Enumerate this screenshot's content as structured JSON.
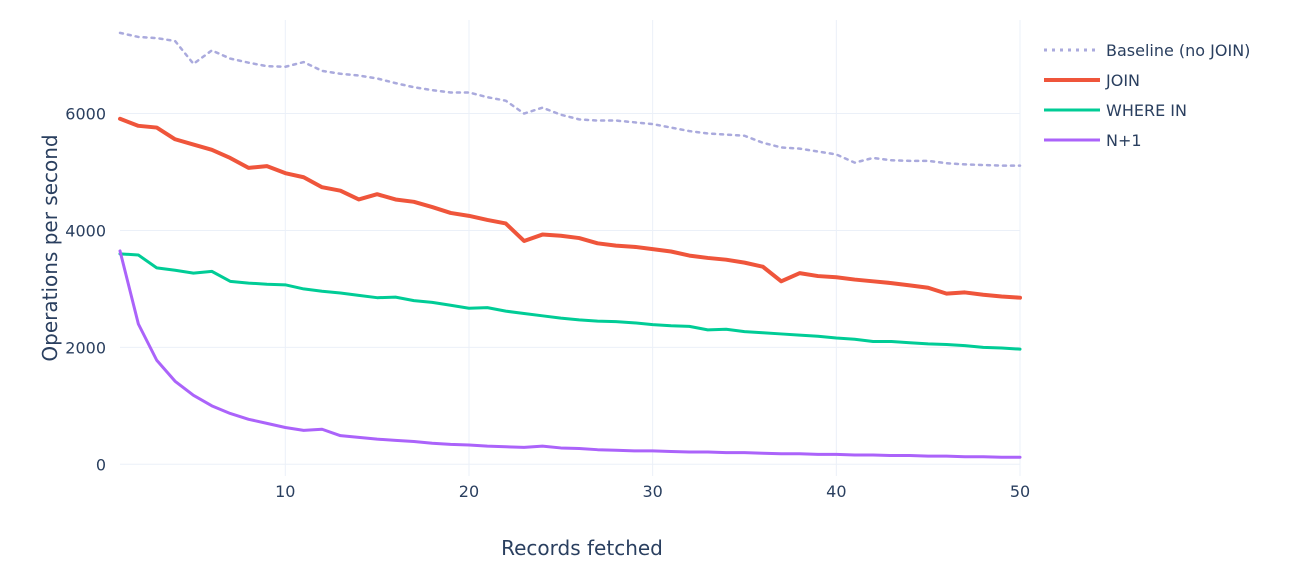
{
  "chart_data": {
    "type": "line",
    "title": "",
    "xlabel": "Records fetched",
    "ylabel": "Operations per second",
    "xlim": [
      1,
      50
    ],
    "ylim": [
      -200,
      7600
    ],
    "xticks": [
      10,
      20,
      30,
      40,
      50
    ],
    "yticks": [
      0,
      2000,
      4000,
      6000
    ],
    "grid": true,
    "legend_position": "top-right",
    "x": [
      1,
      2,
      3,
      4,
      5,
      6,
      7,
      8,
      9,
      10,
      11,
      12,
      13,
      14,
      15,
      16,
      17,
      18,
      19,
      20,
      21,
      22,
      23,
      24,
      25,
      26,
      27,
      28,
      29,
      30,
      31,
      32,
      33,
      34,
      35,
      36,
      37,
      38,
      39,
      40,
      41,
      42,
      43,
      44,
      45,
      46,
      47,
      48,
      49,
      50
    ],
    "series": [
      {
        "name": "Baseline (no JOIN)",
        "color": "#aaaadd",
        "dash": "dot",
        "values": [
          7380,
          7310,
          7290,
          7240,
          6850,
          7080,
          6940,
          6870,
          6810,
          6800,
          6880,
          6730,
          6680,
          6650,
          6600,
          6520,
          6450,
          6400,
          6360,
          6360,
          6280,
          6220,
          6000,
          6100,
          5980,
          5900,
          5880,
          5880,
          5850,
          5820,
          5760,
          5700,
          5660,
          5640,
          5620,
          5500,
          5420,
          5400,
          5350,
          5300,
          5160,
          5240,
          5200,
          5190,
          5190,
          5150,
          5130,
          5120,
          5110,
          5110
        ]
      },
      {
        "name": "JOIN",
        "color": "#ef553b",
        "dash": "solid",
        "values": [
          5910,
          5790,
          5760,
          5560,
          5470,
          5380,
          5240,
          5070,
          5100,
          4980,
          4910,
          4740,
          4680,
          4530,
          4620,
          4530,
          4490,
          4400,
          4300,
          4250,
          4180,
          4120,
          3820,
          3930,
          3910,
          3870,
          3780,
          3740,
          3720,
          3680,
          3640,
          3570,
          3530,
          3500,
          3450,
          3380,
          3130,
          3270,
          3220,
          3200,
          3160,
          3130,
          3100,
          3060,
          3020,
          2920,
          2940,
          2900,
          2870,
          2850
        ]
      },
      {
        "name": "WHERE IN",
        "color": "#00cc96",
        "dash": "solid",
        "values": [
          3600,
          3580,
          3360,
          3320,
          3270,
          3300,
          3130,
          3100,
          3080,
          3070,
          3000,
          2960,
          2930,
          2890,
          2850,
          2860,
          2800,
          2770,
          2720,
          2670,
          2680,
          2620,
          2580,
          2540,
          2500,
          2470,
          2450,
          2440,
          2420,
          2390,
          2370,
          2360,
          2300,
          2310,
          2270,
          2250,
          2230,
          2210,
          2190,
          2160,
          2140,
          2100,
          2100,
          2080,
          2060,
          2050,
          2030,
          2000,
          1990,
          1970
        ]
      },
      {
        "name": "N+1",
        "color": "#ab63fa",
        "dash": "solid",
        "values": [
          3650,
          2400,
          1780,
          1420,
          1180,
          1000,
          870,
          770,
          700,
          630,
          580,
          600,
          490,
          460,
          430,
          410,
          390,
          360,
          340,
          330,
          310,
          300,
          290,
          310,
          280,
          270,
          250,
          240,
          230,
          230,
          220,
          210,
          210,
          200,
          200,
          190,
          180,
          180,
          170,
          170,
          160,
          160,
          150,
          150,
          140,
          140,
          130,
          130,
          120,
          120
        ]
      }
    ]
  }
}
